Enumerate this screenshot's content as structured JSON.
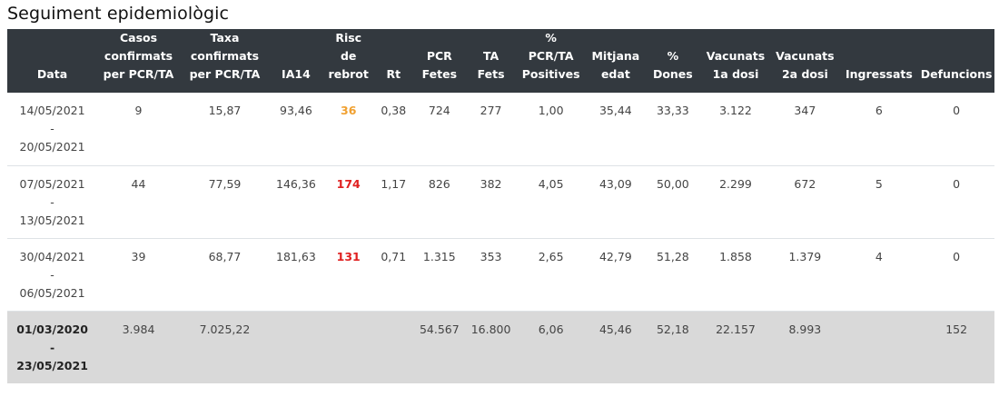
{
  "title": "Seguiment epidemiològic",
  "colors": {
    "header_bg": "#33393f",
    "total_row_bg": "#d9d9d9",
    "risk_medium": "#f0a030",
    "risk_high": "#e02020"
  },
  "columns": [
    [
      "Data"
    ],
    [
      "Casos",
      "confirmats",
      "per PCR/TA"
    ],
    [
      "Taxa",
      "confirmats",
      "per PCR/TA"
    ],
    [
      "IA14"
    ],
    [
      "Risc",
      "de",
      "rebrot"
    ],
    [
      "Rt"
    ],
    [
      "PCR",
      "Fetes"
    ],
    [
      "TA",
      "Fets"
    ],
    [
      "%",
      "PCR/TA",
      "Positives"
    ],
    [
      "Mitjana",
      "edat"
    ],
    [
      "%",
      "Dones"
    ],
    [
      "Vacunats",
      "1a dosi"
    ],
    [
      "Vacunats",
      "2a dosi"
    ],
    [
      "Ingressats"
    ],
    [
      "Defuncions"
    ]
  ],
  "rows": [
    {
      "date_from": "14/05/2021",
      "sep": "-",
      "date_to": "20/05/2021",
      "casos": "9",
      "taxa": "15,87",
      "ia14": "93,46",
      "risc": "36",
      "risc_level": "orange",
      "rt": "0,38",
      "pcr": "724",
      "ta": "277",
      "positives": "1,00",
      "edat": "35,44",
      "dones": "33,33",
      "vac1": "3.122",
      "vac2": "347",
      "ingressats": "6",
      "defuncions": "0"
    },
    {
      "date_from": "07/05/2021",
      "sep": "-",
      "date_to": "13/05/2021",
      "casos": "44",
      "taxa": "77,59",
      "ia14": "146,36",
      "risc": "174",
      "risc_level": "red",
      "rt": "1,17",
      "pcr": "826",
      "ta": "382",
      "positives": "4,05",
      "edat": "43,09",
      "dones": "50,00",
      "vac1": "2.299",
      "vac2": "672",
      "ingressats": "5",
      "defuncions": "0"
    },
    {
      "date_from": "30/04/2021",
      "sep": "-",
      "date_to": "06/05/2021",
      "casos": "39",
      "taxa": "68,77",
      "ia14": "181,63",
      "risc": "131",
      "risc_level": "red",
      "rt": "0,71",
      "pcr": "1.315",
      "ta": "353",
      "positives": "2,65",
      "edat": "42,79",
      "dones": "51,28",
      "vac1": "1.858",
      "vac2": "1.379",
      "ingressats": "4",
      "defuncions": "0"
    }
  ],
  "total": {
    "date_from": "01/03/2020",
    "sep": "-",
    "date_to": "23/05/2021",
    "casos": "3.984",
    "taxa": "7.025,22",
    "ia14": "",
    "risc": "",
    "rt": "",
    "pcr": "54.567",
    "ta": "16.800",
    "positives": "6,06",
    "edat": "45,46",
    "dones": "52,18",
    "vac1": "22.157",
    "vac2": "8.993",
    "ingressats": "",
    "defuncions": "152"
  }
}
